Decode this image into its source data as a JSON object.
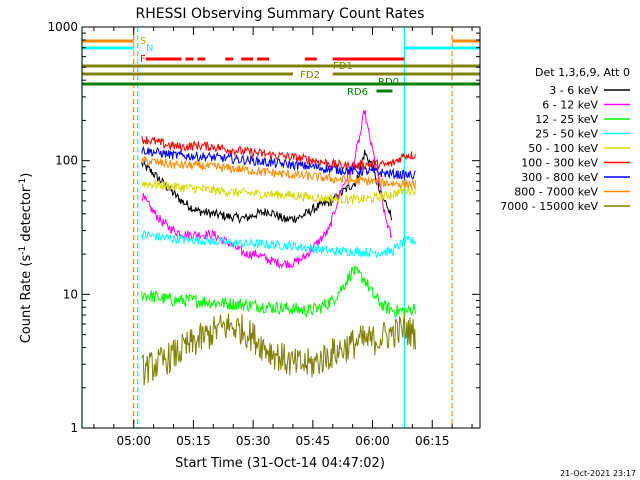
{
  "chart_data": {
    "type": "line",
    "title": "RHESSI Observing Summary Count Rates",
    "xlabel": "Start Time (31-Oct-14 04:47:02)",
    "ylabel_parts": [
      "Count Rate (s",
      "-1",
      " detector",
      "-1",
      ")"
    ],
    "footer": "21-Oct-2021 23:17",
    "y_scale": "log",
    "ylim": [
      1,
      1000
    ],
    "y_ticks": [
      {
        "value": 1,
        "label": "1"
      },
      {
        "value": 10,
        "label": "10"
      },
      {
        "value": 100,
        "label": "100"
      },
      {
        "value": 1000,
        "label": "1000"
      }
    ],
    "xlim": [
      "04:47",
      "06:27"
    ],
    "x_ticks": [
      "05:00",
      "05:15",
      "05:30",
      "05:45",
      "06:00",
      "06:15"
    ],
    "legend_title": "Det 1,3,6,9, Att 0",
    "legend_position": "right",
    "series": [
      {
        "name": "3 - 6 keV",
        "color": "#000000",
        "points": [
          [
            "05:02",
            95
          ],
          [
            "05:05",
            80
          ],
          [
            "05:08",
            65
          ],
          [
            "05:12",
            50
          ],
          [
            "05:16",
            42
          ],
          [
            "05:20",
            40
          ],
          [
            "05:24",
            38
          ],
          [
            "05:28",
            37
          ],
          [
            "05:31",
            40
          ],
          [
            "05:34",
            42
          ],
          [
            "05:38",
            36
          ],
          [
            "05:42",
            38
          ],
          [
            "05:46",
            45
          ],
          [
            "05:50",
            50
          ],
          [
            "05:53",
            60
          ],
          [
            "05:56",
            70
          ],
          [
            "05:58",
            115
          ],
          [
            "06:00",
            90
          ],
          [
            "06:02",
            55
          ],
          [
            "06:04",
            45
          ],
          [
            "06:05",
            35
          ]
        ]
      },
      {
        "name": "6 - 12 keV",
        "color": "#ff00ff",
        "points": [
          [
            "05:02",
            55
          ],
          [
            "05:04",
            45
          ],
          [
            "05:07",
            35
          ],
          [
            "05:10",
            30
          ],
          [
            "05:13",
            28
          ],
          [
            "05:16",
            28
          ],
          [
            "05:20",
            28
          ],
          [
            "05:24",
            24
          ],
          [
            "05:28",
            20
          ],
          [
            "05:31",
            20
          ],
          [
            "05:34",
            18
          ],
          [
            "05:37",
            17
          ],
          [
            "05:40",
            17
          ],
          [
            "05:43",
            19
          ],
          [
            "05:46",
            24
          ],
          [
            "05:49",
            30
          ],
          [
            "05:52",
            60
          ],
          [
            "05:55",
            90
          ],
          [
            "05:57",
            160
          ],
          [
            "05:58",
            240
          ],
          [
            "05:59",
            160
          ],
          [
            "06:01",
            90
          ],
          [
            "06:03",
            40
          ],
          [
            "06:05",
            25
          ]
        ]
      },
      {
        "name": "12 - 25 keV",
        "color": "#00ff00",
        "points": [
          [
            "05:02",
            10
          ],
          [
            "05:06",
            9.5
          ],
          [
            "05:10",
            9
          ],
          [
            "05:15",
            9
          ],
          [
            "05:20",
            8.7
          ],
          [
            "05:25",
            8.5
          ],
          [
            "05:30",
            8.3
          ],
          [
            "05:35",
            8
          ],
          [
            "05:40",
            7.8
          ],
          [
            "05:44",
            7.5
          ],
          [
            "05:47",
            8
          ],
          [
            "05:50",
            9
          ],
          [
            "05:53",
            12
          ],
          [
            "05:55",
            15
          ],
          [
            "05:58",
            13
          ],
          [
            "06:00",
            10
          ],
          [
            "06:03",
            8
          ],
          [
            "06:06",
            7.5
          ],
          [
            "06:09",
            7.5
          ],
          [
            "06:11",
            8
          ]
        ]
      },
      {
        "name": "25 - 50 keV",
        "color": "#00ffff",
        "points": [
          [
            "05:02",
            28
          ],
          [
            "05:06",
            27
          ],
          [
            "05:10",
            26
          ],
          [
            "05:15",
            25.5
          ],
          [
            "05:20",
            25
          ],
          [
            "05:25",
            24
          ],
          [
            "05:30",
            24
          ],
          [
            "05:35",
            23.5
          ],
          [
            "05:40",
            23
          ],
          [
            "05:45",
            22
          ],
          [
            "05:50",
            21
          ],
          [
            "05:55",
            21
          ],
          [
            "06:00",
            20.5
          ],
          [
            "06:05",
            21
          ],
          [
            "06:08",
            25
          ],
          [
            "06:11",
            25
          ]
        ]
      },
      {
        "name": "50 - 100 keV",
        "color": "#d8d800",
        "points": [
          [
            "05:02",
            68
          ],
          [
            "05:06",
            66
          ],
          [
            "05:10",
            64
          ],
          [
            "05:15",
            62
          ],
          [
            "05:20",
            60
          ],
          [
            "05:25",
            58
          ],
          [
            "05:30",
            57
          ],
          [
            "05:35",
            56
          ],
          [
            "05:40",
            55
          ],
          [
            "05:45",
            53
          ],
          [
            "05:50",
            52
          ],
          [
            "05:55",
            51
          ],
          [
            "06:00",
            52
          ],
          [
            "06:04",
            55
          ],
          [
            "06:08",
            60
          ],
          [
            "06:11",
            60
          ]
        ]
      },
      {
        "name": "100 - 300 keV",
        "color": "#ff0000",
        "points": [
          [
            "05:02",
            145
          ],
          [
            "05:05",
            140
          ],
          [
            "05:08",
            132
          ],
          [
            "05:12",
            126
          ],
          [
            "05:16",
            130
          ],
          [
            "05:20",
            127
          ],
          [
            "05:25",
            120
          ],
          [
            "05:30",
            115
          ],
          [
            "05:35",
            110
          ],
          [
            "05:40",
            106
          ],
          [
            "05:45",
            101
          ],
          [
            "05:50",
            94
          ],
          [
            "05:55",
            90
          ],
          [
            "06:00",
            95
          ],
          [
            "06:03",
            93
          ],
          [
            "06:05",
            95
          ],
          [
            "06:08",
            110
          ],
          [
            "06:11",
            110
          ]
        ]
      },
      {
        "name": "300 - 800 keV",
        "color": "#0000ff",
        "points": [
          [
            "05:02",
            120
          ],
          [
            "05:06",
            115
          ],
          [
            "05:10",
            110
          ],
          [
            "05:15",
            108
          ],
          [
            "05:20",
            106
          ],
          [
            "05:25",
            103
          ],
          [
            "05:30",
            100
          ],
          [
            "05:35",
            96
          ],
          [
            "05:40",
            93
          ],
          [
            "05:45",
            90
          ],
          [
            "05:50",
            86
          ],
          [
            "05:55",
            84
          ],
          [
            "06:00",
            83
          ],
          [
            "06:04",
            80
          ],
          [
            "06:08",
            78
          ],
          [
            "06:11",
            78
          ]
        ]
      },
      {
        "name": "800 - 7000 keV",
        "color": "#ff8c00",
        "points": [
          [
            "05:02",
            100
          ],
          [
            "05:06",
            97
          ],
          [
            "05:10",
            93
          ],
          [
            "05:15",
            92
          ],
          [
            "05:20",
            90
          ],
          [
            "05:25",
            87
          ],
          [
            "05:30",
            84
          ],
          [
            "05:35",
            81
          ],
          [
            "05:40",
            78
          ],
          [
            "05:45",
            76
          ],
          [
            "05:50",
            73
          ],
          [
            "05:55",
            71
          ],
          [
            "06:00",
            70
          ],
          [
            "06:04",
            68
          ],
          [
            "06:08",
            67
          ],
          [
            "06:11",
            67
          ]
        ]
      },
      {
        "name": "7000 - 15000 keV",
        "color": "#808000",
        "points": [
          [
            "05:02",
            2.7
          ],
          [
            "05:06",
            3
          ],
          [
            "05:10",
            3.5
          ],
          [
            "05:13",
            4
          ],
          [
            "05:16",
            4.5
          ],
          [
            "05:19",
            5
          ],
          [
            "05:21",
            5.5
          ],
          [
            "05:24",
            5.8
          ],
          [
            "05:27",
            5.5
          ],
          [
            "05:30",
            4.8
          ],
          [
            "05:33",
            4
          ],
          [
            "05:36",
            3.5
          ],
          [
            "05:40",
            3
          ],
          [
            "05:45",
            3
          ],
          [
            "05:49",
            3.5
          ],
          [
            "05:53",
            4
          ],
          [
            "05:57",
            4.5
          ],
          [
            "06:00",
            4.5
          ],
          [
            "06:04",
            5
          ],
          [
            "06:08",
            5.5
          ],
          [
            "06:11",
            5
          ]
        ]
      }
    ],
    "flag_bars": [
      {
        "label": "S",
        "color": "#ff8c00",
        "segments": [
          [
            "04:47",
            "05:00"
          ],
          [
            "06:20",
            "06:27"
          ]
        ]
      },
      {
        "label": "N",
        "color": "#00ffff",
        "segments": [
          [
            "04:47",
            "05:00"
          ],
          [
            "06:08",
            "06:27"
          ]
        ]
      },
      {
        "label": "F",
        "color": "#ff0000",
        "segments": [
          [
            "05:03",
            "05:12"
          ],
          [
            "05:13",
            "05:15"
          ],
          [
            "05:16",
            "05:18"
          ],
          [
            "05:23",
            "05:25"
          ],
          [
            "05:27",
            "05:30"
          ],
          [
            "05:31",
            "05:34"
          ],
          [
            "05:43",
            "05:46"
          ],
          [
            "05:50",
            "06:08"
          ]
        ]
      },
      {
        "label": "FD1",
        "color": "#808000",
        "segments": [
          [
            "04:47",
            "06:27"
          ]
        ]
      },
      {
        "label": "FD2",
        "color": "#808000",
        "segments": [
          [
            "04:47",
            "05:40"
          ],
          [
            "05:50",
            "06:27"
          ]
        ]
      },
      {
        "label": "RD0",
        "color": "#008000",
        "segments": [
          [
            "04:47",
            "06:27"
          ]
        ]
      },
      {
        "label": "RD6",
        "color": "#008000",
        "segments": [
          [
            "06:01",
            "06:05"
          ]
        ]
      }
    ],
    "vertical_markers": [
      {
        "time": "04:47",
        "color": "#00ffff",
        "style": "solid"
      },
      {
        "time": "05:00",
        "color": "#ff8c00",
        "style": "dashed"
      },
      {
        "time": "05:01",
        "color": "#00ffff",
        "style": "dashed"
      },
      {
        "time": "06:08",
        "color": "#00ffff",
        "style": "solid"
      },
      {
        "time": "06:20",
        "color": "#ff8c00",
        "style": "dashed"
      }
    ]
  }
}
